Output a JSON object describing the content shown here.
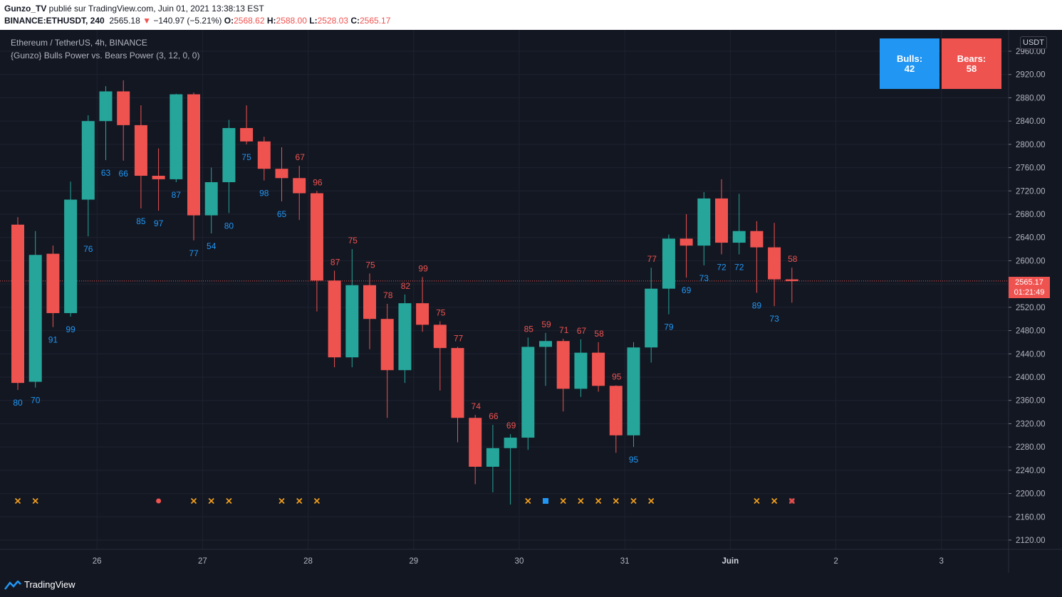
{
  "header": {
    "author": "Gunzo_TV",
    "published_text": " publié sur TradingView.com, Juin 01, 2021 13:38:13 EST",
    "symbol": "BINANCE:ETHUSDT, 240",
    "last": "2565.18",
    "arrow": "▼",
    "change": "−140.97 (−5.21%)",
    "o_label": "O:",
    "o": "2568.62",
    "h_label": "H:",
    "h": "2588.00",
    "l_label": "L:",
    "l": "2528.03",
    "c_label": "C:",
    "c": "2565.17"
  },
  "legend": {
    "series_title": "Ethereum / TetherUS, 4h, BINANCE",
    "indicator": "{Gunzo} Bulls Power vs. Bears Power (3, 12, 0, 0)"
  },
  "panel": {
    "bulls_label": "Bulls:",
    "bulls_value": "42",
    "bears_label": "Bears:",
    "bears_value": "58"
  },
  "price_axis": {
    "currency": "USDT",
    "current_price": "2565.17",
    "countdown": "01:21:49"
  },
  "footer": {
    "brand": "TradingView"
  },
  "colors": {
    "background": "#131722",
    "grid": "#1f2330",
    "up": "#26a69a",
    "down": "#ef5350",
    "bull_label": "#2196f3",
    "bear_label": "#ef5350",
    "signal_x": "#f7a21b",
    "bulls_box": "#2196f3",
    "bears_box": "#ef5350"
  },
  "chart_data": {
    "type": "candlestick",
    "y_ticks": [
      2120,
      2160,
      2200,
      2240,
      2280,
      2320,
      2360,
      2400,
      2440,
      2480,
      2520,
      2560,
      2600,
      2640,
      2680,
      2720,
      2760,
      2800,
      2840,
      2880,
      2920,
      2960
    ],
    "ylim": [
      2110,
      2975
    ],
    "x_ticks": [
      {
        "label": "26",
        "i": 4.5
      },
      {
        "label": "27",
        "i": 10.5
      },
      {
        "label": "28",
        "i": 16.5
      },
      {
        "label": "29",
        "i": 22.5
      },
      {
        "label": "30",
        "i": 28.5
      },
      {
        "label": "31",
        "i": 34.5
      },
      {
        "label": "Juin",
        "i": 40.5
      },
      {
        "label": "2",
        "i": 46.5
      },
      {
        "label": "3",
        "i": 52.5
      }
    ],
    "current_price": 2565.17,
    "candles": [
      {
        "o": 2662,
        "h": 2675,
        "l": 2378,
        "c": 2390,
        "lab": "80",
        "lab_side": "bull",
        "sig": "x"
      },
      {
        "o": 2392,
        "h": 2651,
        "l": 2382,
        "c": 2610,
        "lab": "70",
        "lab_side": "bull",
        "sig": "x"
      },
      {
        "o": 2612,
        "h": 2626,
        "l": 2486,
        "c": 2510,
        "lab": "91",
        "lab_side": "bull"
      },
      {
        "o": 2510,
        "h": 2736,
        "l": 2504,
        "c": 2705,
        "lab": "99",
        "lab_side": "bull"
      },
      {
        "o": 2705,
        "h": 2850,
        "l": 2642,
        "c": 2840,
        "lab": "76",
        "lab_side": "bull"
      },
      {
        "o": 2840,
        "h": 2900,
        "l": 2773,
        "c": 2891,
        "lab": "63",
        "lab_side": "bull"
      },
      {
        "o": 2891,
        "h": 2910,
        "l": 2772,
        "c": 2833,
        "lab": "66",
        "lab_side": "bull"
      },
      {
        "o": 2833,
        "h": 2867,
        "l": 2690,
        "c": 2746,
        "lab": "85",
        "lab_side": "bull"
      },
      {
        "o": 2746,
        "h": 2793,
        "l": 2686,
        "c": 2740,
        "lab": "97",
        "lab_side": "bull",
        "sig": "dot"
      },
      {
        "o": 2740,
        "h": 2887,
        "l": 2735,
        "c": 2886,
        "lab": "87",
        "lab_side": "bull"
      },
      {
        "o": 2886,
        "h": 2889,
        "l": 2635,
        "c": 2678,
        "lab": "77",
        "lab_side": "bull",
        "sig": "x"
      },
      {
        "o": 2678,
        "h": 2760,
        "l": 2647,
        "c": 2735,
        "lab": "54",
        "lab_side": "bull",
        "sig": "x"
      },
      {
        "o": 2735,
        "h": 2842,
        "l": 2682,
        "c": 2828,
        "lab": "80",
        "lab_side": "bull",
        "sig": "x"
      },
      {
        "o": 2828,
        "h": 2867,
        "l": 2800,
        "c": 2805,
        "lab": "75",
        "lab_side": "bull"
      },
      {
        "o": 2805,
        "h": 2813,
        "l": 2738,
        "c": 2758,
        "lab": "98",
        "lab_side": "bull"
      },
      {
        "o": 2758,
        "h": 2795,
        "l": 2702,
        "c": 2742,
        "lab": "65",
        "lab_side": "bull",
        "sig": "x"
      },
      {
        "o": 2742,
        "h": 2763,
        "l": 2670,
        "c": 2716,
        "lab": "67",
        "lab_side": "bear",
        "sig": "x"
      },
      {
        "o": 2716,
        "h": 2720,
        "l": 2513,
        "c": 2566,
        "lab": "96",
        "lab_side": "bear",
        "sig": "x"
      },
      {
        "o": 2566,
        "h": 2583,
        "l": 2417,
        "c": 2434,
        "lab": "87",
        "lab_side": "bear"
      },
      {
        "o": 2434,
        "h": 2620,
        "l": 2417,
        "c": 2558,
        "lab": "75",
        "lab_side": "bear"
      },
      {
        "o": 2558,
        "h": 2578,
        "l": 2448,
        "c": 2500,
        "lab": "75",
        "lab_side": "bear"
      },
      {
        "o": 2500,
        "h": 2526,
        "l": 2330,
        "c": 2412,
        "lab": "78",
        "lab_side": "bear"
      },
      {
        "o": 2412,
        "h": 2542,
        "l": 2390,
        "c": 2527,
        "lab": "82",
        "lab_side": "bear"
      },
      {
        "o": 2527,
        "h": 2572,
        "l": 2478,
        "c": 2490,
        "lab": "99",
        "lab_side": "bear"
      },
      {
        "o": 2490,
        "h": 2496,
        "l": 2377,
        "c": 2450,
        "lab": "75",
        "lab_side": "bear"
      },
      {
        "o": 2450,
        "h": 2452,
        "l": 2288,
        "c": 2330,
        "lab": "77",
        "lab_side": "bear"
      },
      {
        "o": 2330,
        "h": 2335,
        "l": 2216,
        "c": 2246,
        "lab": "74",
        "lab_side": "bear"
      },
      {
        "o": 2246,
        "h": 2318,
        "l": 2202,
        "c": 2278,
        "lab": "66",
        "lab_side": "bear"
      },
      {
        "o": 2278,
        "h": 2302,
        "l": 2181,
        "c": 2296,
        "lab": "69",
        "lab_side": "bear"
      },
      {
        "o": 2296,
        "h": 2468,
        "l": 2275,
        "c": 2452,
        "lab": "85",
        "lab_side": "bear",
        "sig": "x"
      },
      {
        "o": 2452,
        "h": 2476,
        "l": 2385,
        "c": 2462,
        "lab": "59",
        "lab_side": "bear",
        "sig": "sq"
      },
      {
        "o": 2462,
        "h": 2466,
        "l": 2341,
        "c": 2380,
        "lab": "71",
        "lab_side": "bear",
        "sig": "x"
      },
      {
        "o": 2380,
        "h": 2465,
        "l": 2366,
        "c": 2442,
        "lab": "67",
        "lab_side": "bear",
        "sig": "x"
      },
      {
        "o": 2442,
        "h": 2460,
        "l": 2375,
        "c": 2385,
        "lab": "58",
        "lab_side": "bear",
        "sig": "x"
      },
      {
        "o": 2385,
        "h": 2386,
        "l": 2270,
        "c": 2300,
        "lab": "95",
        "lab_side": "bear",
        "sig": "x"
      },
      {
        "o": 2300,
        "h": 2460,
        "l": 2280,
        "c": 2451,
        "lab": "95",
        "lab_side": "bull",
        "sig": "x"
      },
      {
        "o": 2451,
        "h": 2588,
        "l": 2425,
        "c": 2552,
        "lab": "77",
        "lab_side": "bear",
        "sig": "x"
      },
      {
        "o": 2552,
        "h": 2645,
        "l": 2508,
        "c": 2638,
        "lab": "79",
        "lab_side": "bull"
      },
      {
        "o": 2638,
        "h": 2680,
        "l": 2571,
        "c": 2626,
        "lab": "69",
        "lab_side": "bull"
      },
      {
        "o": 2626,
        "h": 2718,
        "l": 2592,
        "c": 2707,
        "lab": "73",
        "lab_side": "bull"
      },
      {
        "o": 2707,
        "h": 2740,
        "l": 2611,
        "c": 2631,
        "lab": "72",
        "lab_side": "bull"
      },
      {
        "o": 2631,
        "h": 2715,
        "l": 2611,
        "c": 2651,
        "lab": "72",
        "lab_side": "bull"
      },
      {
        "o": 2651,
        "h": 2668,
        "l": 2545,
        "c": 2623,
        "lab": "89",
        "lab_side": "bull",
        "sig": "x"
      },
      {
        "o": 2623,
        "h": 2665,
        "l": 2522,
        "c": 2568,
        "lab": "73",
        "lab_side": "bull",
        "sig": "x"
      },
      {
        "o": 2568,
        "h": 2588,
        "l": 2528,
        "c": 2565,
        "lab": "58",
        "lab_side": "bear",
        "sig": "xr"
      }
    ]
  }
}
